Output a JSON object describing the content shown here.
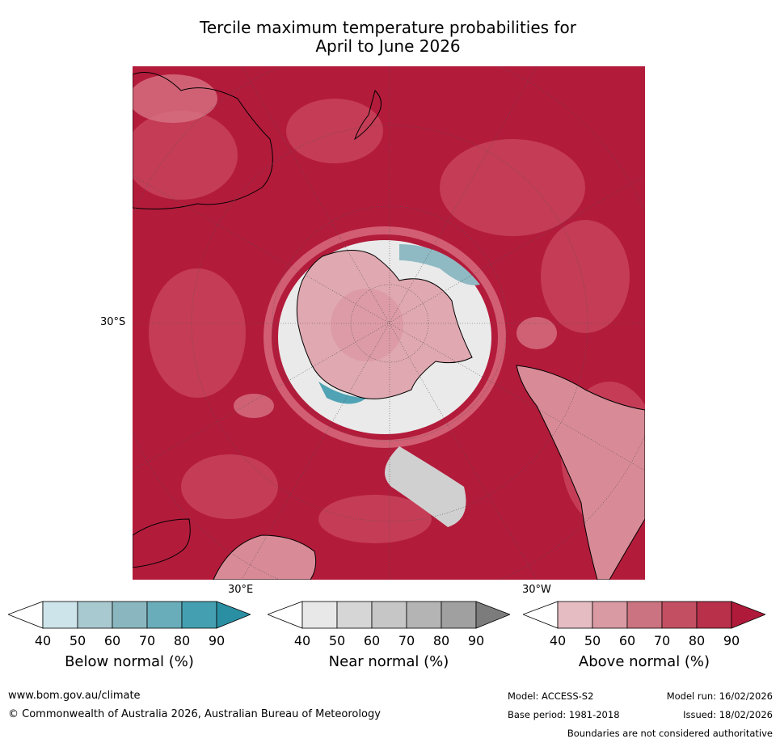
{
  "title_line1": "Tercile maximum temperature probabilities for",
  "title_line2": "April to June 2026",
  "map": {
    "lat_label": "30°S",
    "lon_label_east": "30°E",
    "lon_label_west": "30°W",
    "colors": {
      "above_90": "#b31b3b",
      "above_80": "#c4344d",
      "above_70": "#d0536a",
      "above_60": "#d98a97",
      "above_50": "#e4b3ba",
      "near": "#dcdcdc",
      "below_60": "#8fbac3",
      "below_80": "#4fa3b4"
    }
  },
  "colorbars": [
    {
      "label": "Below normal (%)",
      "ticks": [
        "40",
        "50",
        "60",
        "70",
        "80",
        "90"
      ],
      "colors": [
        "#ffffff",
        "#cde4ea",
        "#a9c9d0",
        "#8ab7bf",
        "#6aadba",
        "#44a0b1",
        "#2a8fa3"
      ]
    },
    {
      "label": "Near normal (%)",
      "ticks": [
        "40",
        "50",
        "60",
        "70",
        "80",
        "90"
      ],
      "colors": [
        "#ffffff",
        "#e8e8e8",
        "#d6d6d6",
        "#c6c6c6",
        "#b4b4b4",
        "#a0a0a0",
        "#7c7c7c"
      ]
    },
    {
      "label": "Above normal (%)",
      "ticks": [
        "40",
        "50",
        "60",
        "70",
        "80",
        "90"
      ],
      "colors": [
        "#ffffff",
        "#e5bcc2",
        "#d99aa3",
        "#cb7380",
        "#c34f63",
        "#b8304a",
        "#b01a3a"
      ]
    }
  ],
  "footer": {
    "website": "www.bom.gov.au/climate",
    "copyright": "© Commonwealth of Australia 2026, Australian Bureau of Meteorology",
    "model": "Model: ACCESS-S2",
    "model_run": "Model run: 16/02/2026",
    "base_period": "Base period: 1981-2018",
    "issued": "Issued: 18/02/2026",
    "boundaries": "Boundaries are not considered authoritative"
  }
}
